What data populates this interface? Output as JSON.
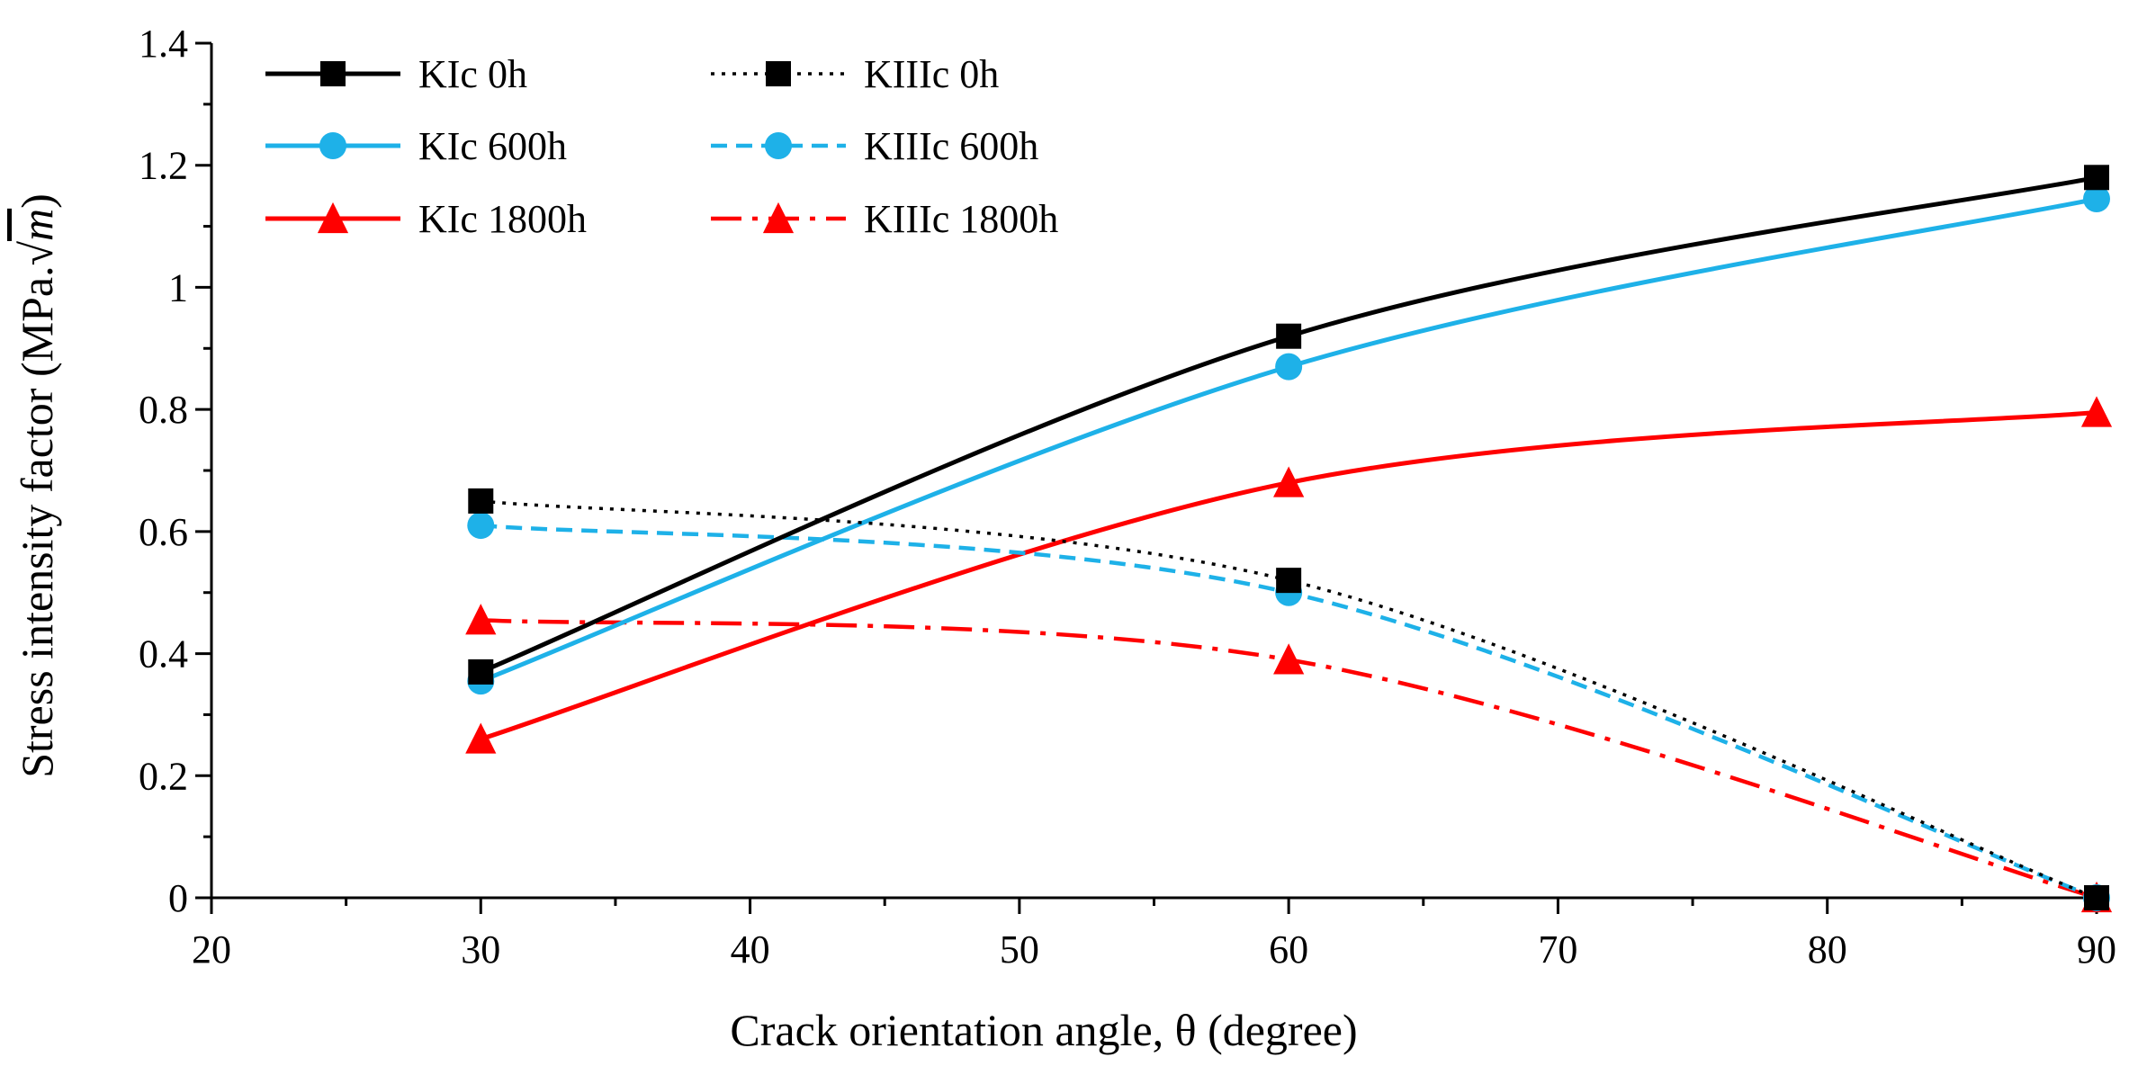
{
  "chart_data": {
    "type": "line",
    "title": "",
    "xlabel": "Crack orientation angle, θ  (degree)",
    "ylabel": "Stress intensity factor (MPa.",
    "ylabel_unit": "m",
    "xlim": [
      20,
      90
    ],
    "ylim": [
      0,
      1.4
    ],
    "x_ticks": [
      "20",
      "30",
      "40",
      "50",
      "60",
      "70",
      "80",
      "90"
    ],
    "y_ticks": [
      "0",
      "0.2",
      "0.4",
      "0.6",
      "0.8",
      "1",
      "1.2",
      "1.4"
    ],
    "grid": false,
    "legend_position": "top-left",
    "x": [
      30,
      60,
      90
    ],
    "series": [
      {
        "name": "KIc 0h",
        "values": [
          0.37,
          0.92,
          1.18
        ],
        "color": "#000000",
        "line": "solid",
        "marker": "square"
      },
      {
        "name": "KIIIc 0h",
        "values": [
          0.65,
          0.52,
          0.0
        ],
        "color": "#000000",
        "line": "dotted",
        "marker": "square"
      },
      {
        "name": "KIc 600h",
        "values": [
          0.355,
          0.87,
          1.145
        ],
        "color": "#1EB1E8",
        "line": "solid",
        "marker": "circle"
      },
      {
        "name": "KIIIc 600h",
        "values": [
          0.61,
          0.5,
          0.0
        ],
        "color": "#1EB1E8",
        "line": "dashed",
        "marker": "circle"
      },
      {
        "name": "KIc 1800h",
        "values": [
          0.26,
          0.68,
          0.795
        ],
        "color": "#FF0000",
        "line": "solid",
        "marker": "triangle"
      },
      {
        "name": "KIIIc 1800h",
        "values": [
          0.455,
          0.39,
          0.0
        ],
        "color": "#FF0000",
        "line": "dashdot",
        "marker": "triangle"
      }
    ]
  }
}
